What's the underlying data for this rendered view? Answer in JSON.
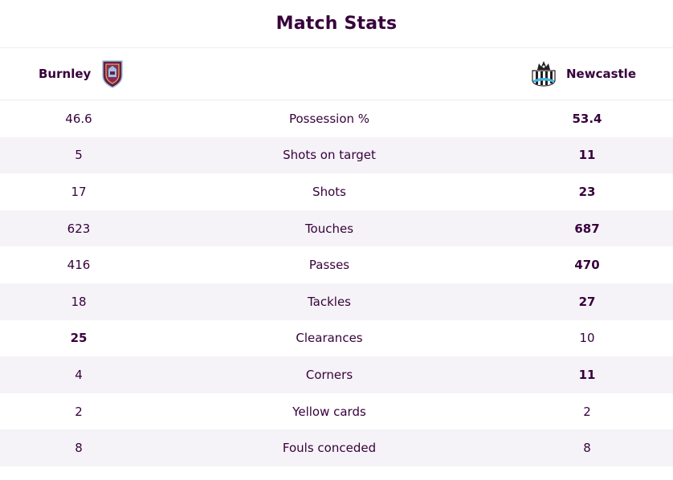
{
  "header": {
    "title": "Match Stats"
  },
  "teams": {
    "home": {
      "name": "Burnley",
      "crest_icon": "burnley-crest-icon",
      "crest_color": "#6c1d45"
    },
    "away": {
      "name": "Newcastle",
      "crest_icon": "newcastle-crest-icon",
      "crest_color": "#241f20"
    }
  },
  "colors": {
    "text": "#37003c",
    "row_alt": "#f5f3f7"
  },
  "stats": [
    {
      "label": "Possession %",
      "home": "46.6",
      "away": "53.4",
      "leader": "away"
    },
    {
      "label": "Shots on target",
      "home": "5",
      "away": "11",
      "leader": "away"
    },
    {
      "label": "Shots",
      "home": "17",
      "away": "23",
      "leader": "away"
    },
    {
      "label": "Touches",
      "home": "623",
      "away": "687",
      "leader": "away"
    },
    {
      "label": "Passes",
      "home": "416",
      "away": "470",
      "leader": "away"
    },
    {
      "label": "Tackles",
      "home": "18",
      "away": "27",
      "leader": "away"
    },
    {
      "label": "Clearances",
      "home": "25",
      "away": "10",
      "leader": "home"
    },
    {
      "label": "Corners",
      "home": "4",
      "away": "11",
      "leader": "away"
    },
    {
      "label": "Yellow cards",
      "home": "2",
      "away": "2",
      "leader": "none"
    },
    {
      "label": "Fouls conceded",
      "home": "8",
      "away": "8",
      "leader": "none"
    }
  ]
}
